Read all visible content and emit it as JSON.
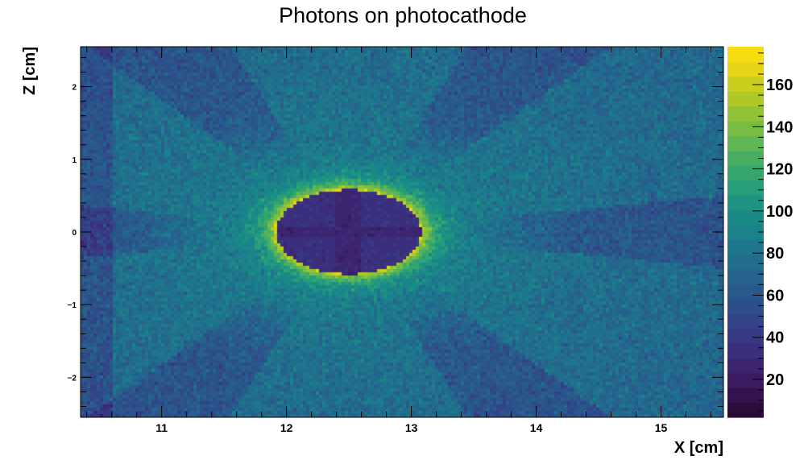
{
  "chart_data": {
    "type": "heatmap",
    "title": "Photons on photocathode",
    "xlabel": "X [cm]",
    "ylabel": "Z [cm]",
    "xlim": [
      10.35,
      15.5
    ],
    "ylim": [
      -2.55,
      2.55
    ],
    "zlim": [
      2,
      178
    ],
    "x_ticks": [
      "11",
      "12",
      "13",
      "14",
      "15"
    ],
    "y_ticks": [
      "−2",
      "−1",
      "0",
      "1",
      "2"
    ],
    "z_ticks": [
      "20",
      "40",
      "60",
      "80",
      "100",
      "120",
      "140",
      "160"
    ],
    "colormap": "viridis",
    "palette": [
      "#2c0a3a",
      "#35124e",
      "#3a1b61",
      "#3d2471",
      "#3b2e7c",
      "#373983",
      "#324487",
      "#2d4f89",
      "#29598b",
      "#25638c",
      "#216d8c",
      "#1e778c",
      "#1b818b",
      "#1a8a87",
      "#1d9482",
      "#279d7a",
      "#36a66f",
      "#49ae62",
      "#5fb653",
      "#78bd43",
      "#93c334",
      "#b0c826",
      "#ccce1d",
      "#e6d419",
      "#f7dc12"
    ],
    "features": {
      "central_hole": {
        "center": [
          12.5,
          0.0
        ],
        "semi_axes": [
          0.58,
          0.58
        ],
        "value_range": [
          25,
          45
        ]
      },
      "bright_ring": {
        "value_range": [
          130,
          175
        ]
      },
      "background_range": [
        55,
        95
      ],
      "shadow_bands": "radial darker wedges around the central hole"
    }
  }
}
